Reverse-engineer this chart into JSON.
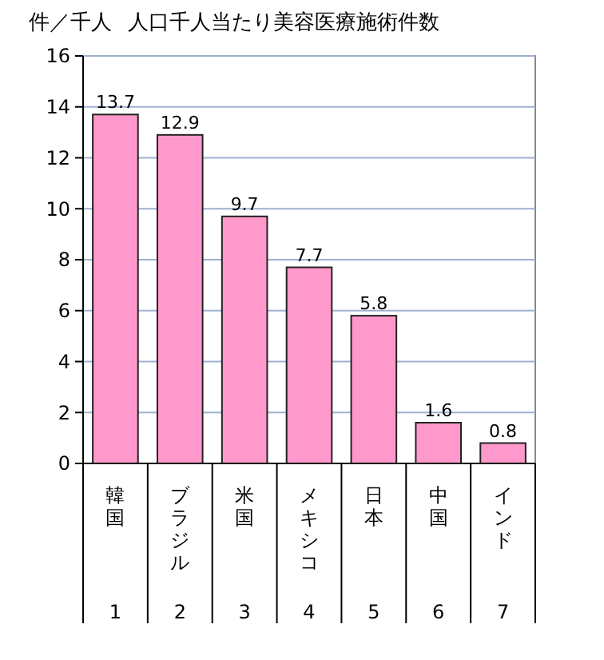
{
  "chart_data": {
    "type": "bar",
    "title": "人口千人当たり美容医療施術件数",
    "ylabel": "件／千人",
    "categories": [
      "韓国",
      "ブラジル",
      "米国",
      "メキシコ",
      "日本",
      "中国",
      "インド"
    ],
    "values": [
      13.7,
      12.9,
      9.7,
      7.7,
      5.8,
      1.6,
      0.8
    ],
    "color": "#ff99cc",
    "data_labels": true,
    "ylim": [
      0,
      16
    ],
    "yticks": [
      0,
      2,
      4,
      6,
      8,
      10,
      12,
      14,
      16
    ],
    "grid": "y",
    "annotations": [
      "1",
      "2",
      "3",
      "4",
      "5",
      "6",
      "7"
    ]
  }
}
